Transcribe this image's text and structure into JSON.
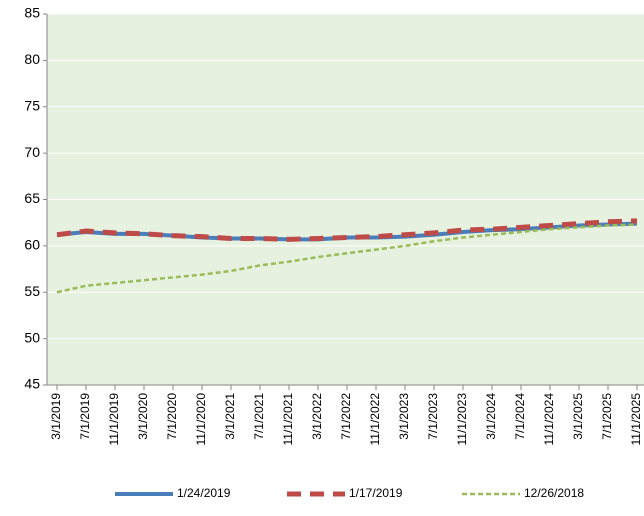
{
  "chart_data": {
    "type": "line",
    "categories": [
      "3/1/2019",
      "7/1/2019",
      "11/1/2019",
      "3/1/2020",
      "7/1/2020",
      "11/1/2020",
      "3/1/2021",
      "7/1/2021",
      "11/1/2021",
      "3/1/2022",
      "7/1/2022",
      "11/1/2022",
      "3/1/2023",
      "7/1/2023",
      "11/1/2023",
      "3/1/2024",
      "7/1/2024",
      "11/1/2024",
      "3/1/2025",
      "7/1/2025",
      "11/1/2025"
    ],
    "series": [
      {
        "name": "1/24/2019",
        "color": "#4a7ebb",
        "values": [
          61.2,
          61.5,
          61.3,
          61.3,
          61.1,
          60.9,
          60.8,
          60.8,
          60.7,
          60.7,
          60.9,
          60.9,
          61.0,
          61.2,
          61.5,
          61.7,
          61.8,
          62.0,
          62.2,
          62.3,
          62.4
        ]
      },
      {
        "name": "1/17/2019",
        "color": "#be4b48",
        "values": [
          61.2,
          61.6,
          61.4,
          61.3,
          61.1,
          61.0,
          60.8,
          60.8,
          60.7,
          60.8,
          60.9,
          61.0,
          61.2,
          61.4,
          61.7,
          61.8,
          62.0,
          62.2,
          62.4,
          62.6,
          62.7
        ]
      },
      {
        "name": "12/26/2018",
        "color": "#9bbb59",
        "values": [
          55.0,
          55.7,
          56.0,
          56.3,
          56.6,
          56.9,
          57.3,
          57.9,
          58.3,
          58.8,
          59.2,
          59.6,
          60.0,
          60.5,
          60.9,
          61.2,
          61.5,
          61.8,
          62.0,
          62.2,
          62.3
        ]
      }
    ],
    "ylim": [
      45,
      85
    ],
    "yticks": [
      45,
      50,
      55,
      60,
      65,
      70,
      75,
      80,
      85
    ],
    "grid": true,
    "legend": "bottom"
  }
}
